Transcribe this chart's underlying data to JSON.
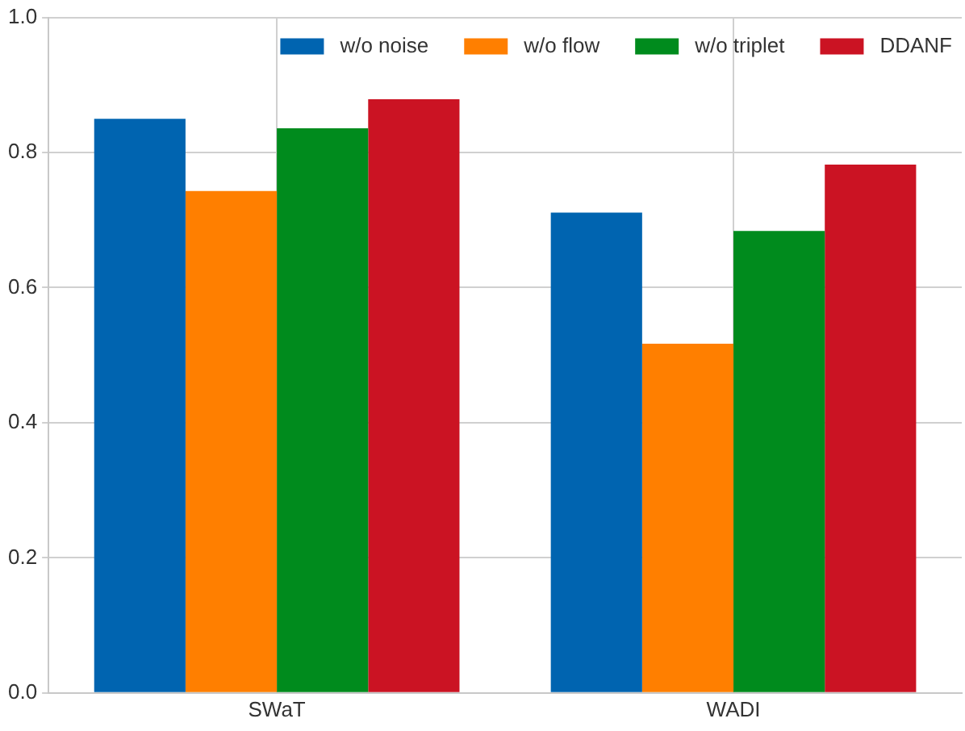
{
  "chart_data": {
    "type": "bar",
    "categories": [
      "SWaT",
      "WADI"
    ],
    "series": [
      {
        "name": "w/o noise",
        "color": "#0064b0",
        "values": [
          0.85,
          0.711
        ]
      },
      {
        "name": "w/o flow",
        "color": "#ff7f00",
        "values": [
          0.743,
          0.517
        ]
      },
      {
        "name": "w/o triplet",
        "color": "#008b1d",
        "values": [
          0.836,
          0.684
        ]
      },
      {
        "name": "DDANF",
        "color": "#cb1323",
        "values": [
          0.879,
          0.782
        ]
      }
    ],
    "ylim": [
      0,
      1
    ],
    "yticks": [
      {
        "value": 0,
        "label": "0.0"
      },
      0.2,
      0.4,
      0.6,
      0.8,
      {
        "value": 1,
        "label": "1.0"
      }
    ],
    "grid": true,
    "legend": "top right"
  }
}
